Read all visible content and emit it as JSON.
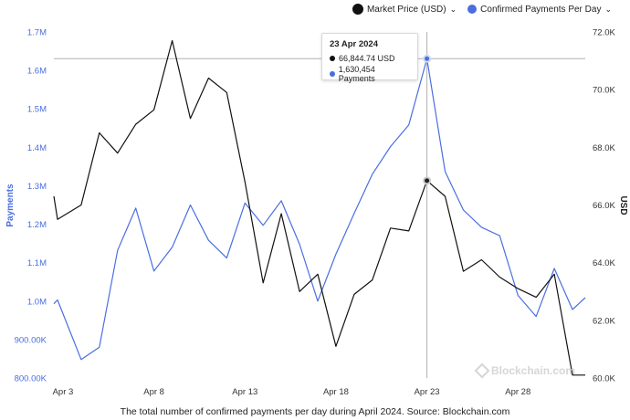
{
  "legend": {
    "market_price": "Market Price (USD)",
    "payments": "Confirmed Payments Per Day"
  },
  "tooltip": {
    "date": "23 Apr 2024",
    "price": "66,844.74 USD",
    "payments": "1,630,454 Payments"
  },
  "watermark": "Blockchain.com",
  "caption": "The total number of confirmed payments per day during April 2024. Source: Blockchain.com",
  "colors": {
    "payments": "#4a6ee0",
    "price": "#111111",
    "left_axis_text": "#4a6ee0",
    "right_axis_text": "#333333",
    "crosshair": "#b0b0b0"
  },
  "chart_data": {
    "type": "line",
    "x_ticks": [
      "Apr 3",
      "Apr 8",
      "Apr 13",
      "Apr 18",
      "Apr 23",
      "Apr 28"
    ],
    "x_tick_days": [
      3,
      8,
      13,
      18,
      23,
      28
    ],
    "y_left_label": "Payments",
    "y_left_ticks": [
      "800.00K",
      "900.00K",
      "1.0M",
      "1.1M",
      "1.2M",
      "1.3M",
      "1.4M",
      "1.5M",
      "1.6M",
      "1.7M"
    ],
    "y_left_range": [
      800000,
      1700000
    ],
    "y_right_label": "USD",
    "y_right_ticks": [
      "60.0K",
      "62.0K",
      "64.0K",
      "66.0K",
      "68.0K",
      "70.0K",
      "72.0K"
    ],
    "y_right_range": [
      60000,
      72000
    ],
    "x_range": [
      2.5,
      31.7
    ],
    "highlight_day": 23,
    "series": [
      {
        "name": "Confirmed Payments Per Day",
        "axis": "left",
        "x": [
          2.5,
          2.7,
          4,
          5,
          6,
          7,
          8,
          9,
          10,
          11,
          12,
          13,
          14,
          15,
          16,
          17,
          18,
          19,
          20,
          21,
          22,
          23,
          24,
          25,
          26,
          27,
          28,
          29,
          30,
          31,
          31.7
        ],
        "y": [
          993000,
          1003000,
          848000,
          880000,
          1132000,
          1242000,
          1078000,
          1140000,
          1250000,
          1158000,
          1112000,
          1255000,
          1197000,
          1261000,
          1148000,
          1000000,
          1122000,
          1228000,
          1330000,
          1402000,
          1458000,
          1630454,
          1337000,
          1237000,
          1192000,
          1170000,
          1015000,
          960000,
          1085000,
          978000,
          1009000
        ]
      },
      {
        "name": "Market Price (USD)",
        "axis": "right",
        "x": [
          2.5,
          2.7,
          4,
          5,
          6,
          7,
          8,
          9,
          10,
          11,
          12,
          13,
          14,
          15,
          16,
          17,
          18,
          19,
          20,
          21,
          22,
          23,
          24,
          25,
          26,
          27,
          28,
          29,
          30,
          31,
          31.7
        ],
        "y": [
          66300,
          65500,
          66000,
          68500,
          67800,
          68800,
          69300,
          71700,
          69000,
          70400,
          69900,
          66800,
          63300,
          65700,
          63000,
          63600,
          61100,
          62900,
          63400,
          65200,
          65100,
          66844.74,
          66300,
          63700,
          64100,
          63500,
          63100,
          62800,
          63600,
          60100,
          60100
        ]
      }
    ]
  }
}
